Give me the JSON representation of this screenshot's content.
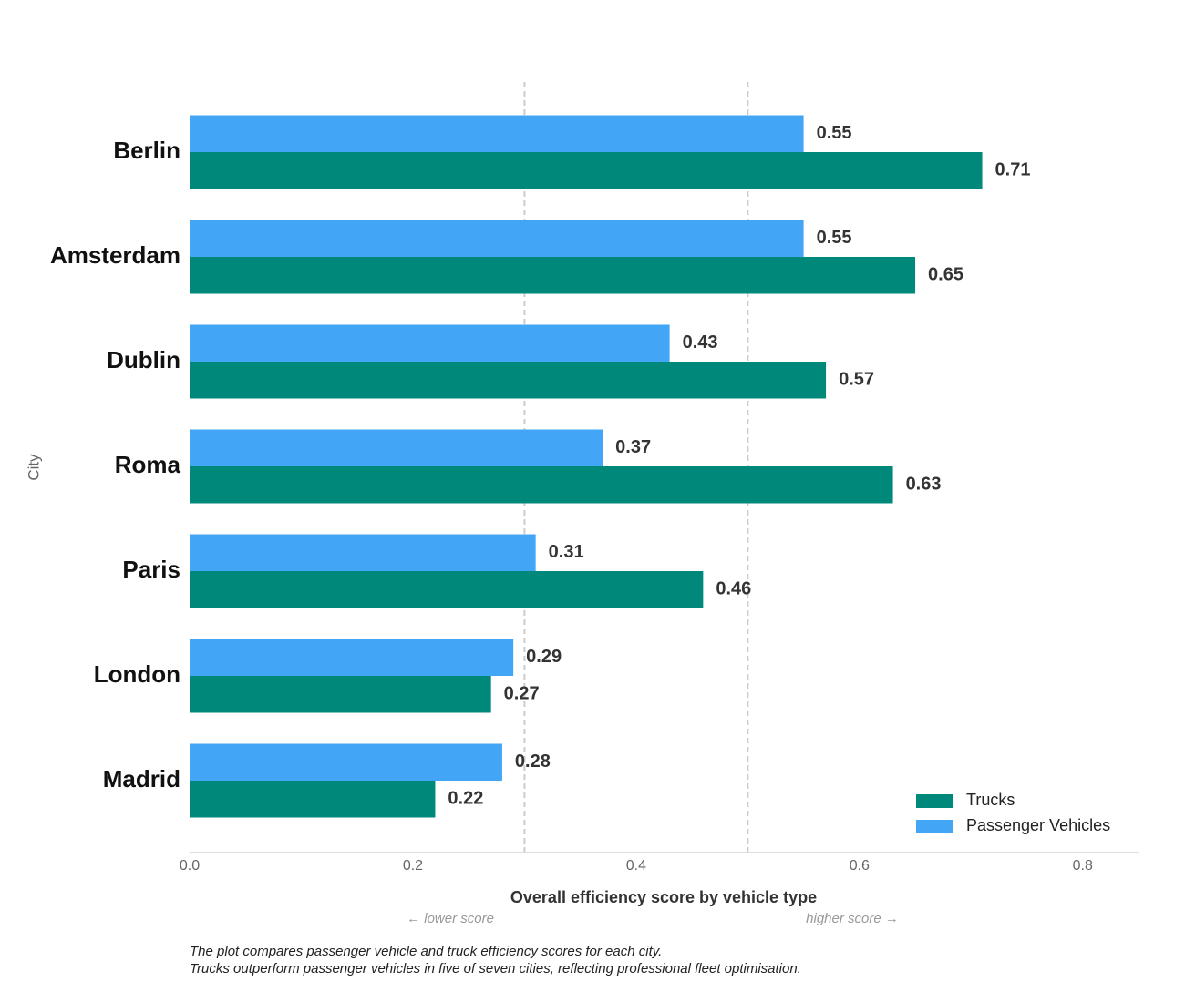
{
  "chart_data": {
    "type": "grouped-horizontal-bar",
    "categories": [
      "Berlin",
      "Amsterdam",
      "Dublin",
      "Roma",
      "Paris",
      "London",
      "Madrid"
    ],
    "series": [
      {
        "name": "Trucks",
        "color": "#00897b",
        "values": [
          0.71,
          0.65,
          0.57,
          0.63,
          0.46,
          0.27,
          0.22
        ]
      },
      {
        "name": "Passenger Vehicles",
        "color": "#42a5f5",
        "values": [
          0.55,
          0.55,
          0.43,
          0.37,
          0.31,
          0.29,
          0.28
        ]
      }
    ],
    "xlim": [
      0,
      0.85
    ],
    "xticks": [
      {
        "value": 0,
        "label": "0.0"
      },
      0.2,
      0.4,
      0.6,
      0.8
    ],
    "reference_lines": [
      0.3,
      0.5
    ],
    "x_label": "Overall efficiency score by vehicle type",
    "y_label": "City",
    "annotations": [
      "← lower score",
      "higher score →"
    ],
    "caption": [
      "The plot compares passenger vehicle and truck efficiency scores for each city.",
      "Trucks outperform passenger vehicles in five of seven cities, reflecting professional fleet optimisation."
    ],
    "legend": "lower-right"
  }
}
